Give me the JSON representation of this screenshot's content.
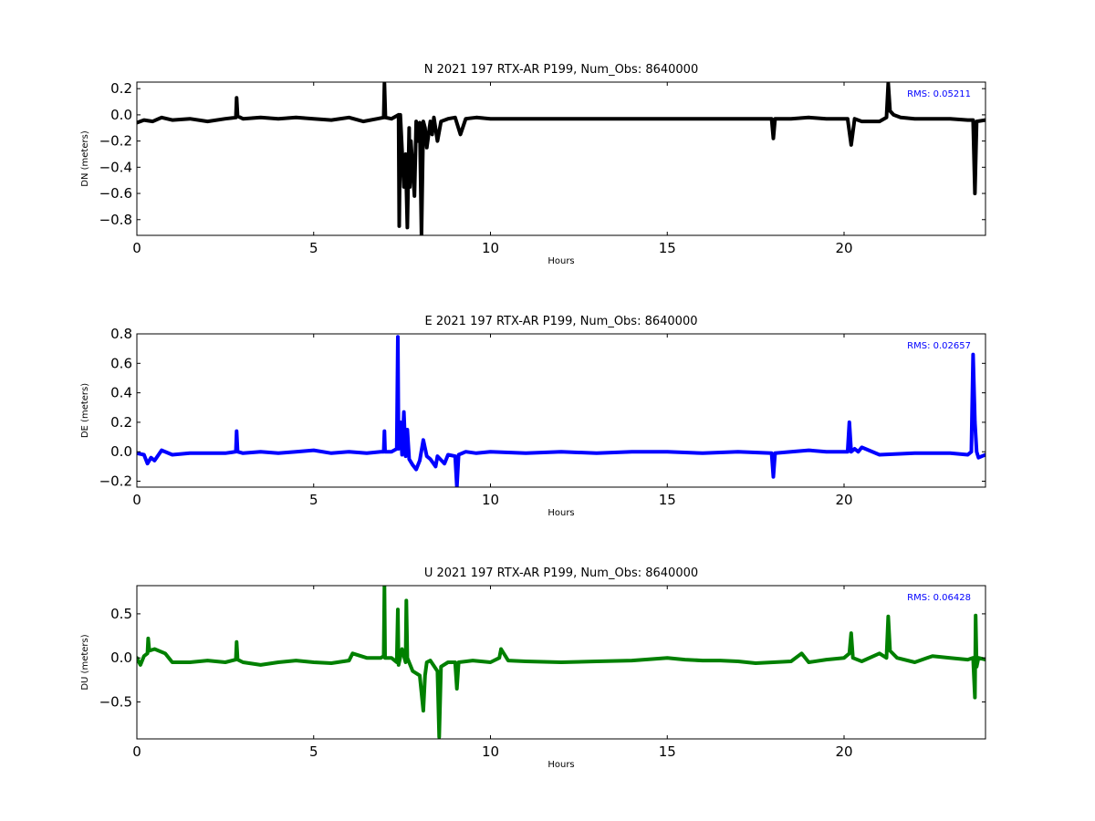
{
  "chart_data": [
    {
      "type": "line",
      "title": "N 2021 197 RTX-AR  P199, Num_Obs: 8640000",
      "xlabel": "Hours",
      "ylabel": "DN (meters)",
      "xlim": [
        0,
        24
      ],
      "ylim": [
        -0.92,
        0.25
      ],
      "xticks": [
        0,
        5,
        10,
        15,
        20
      ],
      "xtick_labels": [
        "0",
        "5",
        "10",
        "15",
        "20"
      ],
      "yticks": [
        0.2,
        0.0,
        -0.2,
        -0.4,
        -0.6,
        -0.8
      ],
      "ytick_labels": [
        "0.2",
        "0.0",
        "−0.2",
        "−0.4",
        "−0.6",
        "−0.8"
      ],
      "annotation": "RMS:  0.05211",
      "annotation_color": "#0000ff",
      "series": [
        {
          "color": "#000000",
          "x": [
            0,
            0.2,
            0.45,
            0.7,
            1.0,
            1.5,
            2.0,
            2.5,
            2.8,
            2.82,
            2.85,
            3.0,
            3.5,
            4.0,
            4.5,
            5.0,
            5.5,
            6.0,
            6.4,
            6.8,
            6.98,
            7.0,
            7.03,
            7.2,
            7.4,
            7.42,
            7.45,
            7.55,
            7.6,
            7.65,
            7.7,
            7.72,
            7.75,
            7.85,
            7.9,
            7.95,
            8.0,
            8.05,
            8.1,
            8.15,
            8.2,
            8.3,
            8.35,
            8.4,
            8.5,
            8.6,
            8.8,
            9.0,
            9.15,
            9.3,
            9.6,
            10.0,
            11.0,
            12.0,
            13.0,
            14.0,
            15.0,
            16.0,
            17.0,
            17.95,
            18.0,
            18.05,
            18.5,
            19.0,
            19.5,
            20.0,
            20.1,
            20.2,
            20.3,
            20.5,
            21.0,
            21.2,
            21.25,
            21.3,
            21.4,
            21.6,
            22.0,
            22.5,
            23.0,
            23.5,
            23.65,
            23.7,
            23.75,
            24.0
          ],
          "y": [
            -0.06,
            -0.04,
            -0.05,
            -0.02,
            -0.04,
            -0.03,
            -0.05,
            -0.03,
            -0.02,
            0.13,
            -0.01,
            -0.03,
            -0.02,
            -0.03,
            -0.02,
            -0.03,
            -0.04,
            -0.02,
            -0.05,
            -0.03,
            -0.02,
            0.24,
            -0.02,
            -0.03,
            0.0,
            -0.85,
            0.0,
            -0.55,
            -0.3,
            -0.86,
            -0.1,
            -0.55,
            -0.2,
            -0.62,
            -0.05,
            -0.2,
            -0.06,
            -0.92,
            -0.05,
            -0.1,
            -0.25,
            -0.05,
            -0.15,
            -0.02,
            -0.2,
            -0.05,
            -0.03,
            -0.02,
            -0.15,
            -0.03,
            -0.02,
            -0.03,
            -0.03,
            -0.03,
            -0.03,
            -0.03,
            -0.03,
            -0.03,
            -0.03,
            -0.03,
            -0.18,
            -0.03,
            -0.03,
            -0.02,
            -0.03,
            -0.03,
            -0.03,
            -0.23,
            -0.03,
            -0.05,
            -0.05,
            -0.02,
            0.24,
            0.03,
            0.0,
            -0.02,
            -0.03,
            -0.03,
            -0.03,
            -0.04,
            -0.04,
            -0.6,
            -0.05,
            -0.04
          ]
        }
      ]
    },
    {
      "type": "line",
      "title": "E 2021 197 RTX-AR  P199, Num_Obs: 8640000",
      "xlabel": "Hours",
      "ylabel": "DE (meters)",
      "xlim": [
        0,
        24
      ],
      "ylim": [
        -0.24,
        0.8
      ],
      "xticks": [
        0,
        5,
        10,
        15,
        20
      ],
      "xtick_labels": [
        "0",
        "5",
        "10",
        "15",
        "20"
      ],
      "yticks": [
        0.8,
        0.6,
        0.4,
        0.2,
        0.0,
        -0.2
      ],
      "ytick_labels": [
        "0.8",
        "0.6",
        "0.4",
        "0.2",
        "0.0",
        "−0.2"
      ],
      "annotation": "RMS:  0.02657",
      "annotation_color": "#0000ff",
      "series": [
        {
          "color": "#0000ff",
          "x": [
            0,
            0.2,
            0.3,
            0.4,
            0.5,
            0.7,
            1.0,
            1.5,
            2.0,
            2.5,
            2.8,
            2.82,
            2.85,
            3.0,
            3.5,
            4.0,
            4.5,
            5.0,
            5.5,
            6.0,
            6.5,
            6.9,
            6.98,
            7.0,
            7.02,
            7.2,
            7.35,
            7.38,
            7.4,
            7.45,
            7.5,
            7.55,
            7.6,
            7.65,
            7.7,
            7.8,
            7.9,
            8.0,
            8.1,
            8.2,
            8.3,
            8.45,
            8.5,
            8.7,
            8.8,
            9.0,
            9.05,
            9.1,
            9.3,
            9.6,
            10.0,
            11.0,
            12.0,
            13.0,
            14.0,
            15.0,
            16.0,
            17.0,
            17.95,
            18.0,
            18.05,
            18.5,
            19.0,
            19.5,
            20.0,
            20.1,
            20.15,
            20.2,
            20.3,
            20.4,
            20.5,
            21.0,
            22.0,
            23.0,
            23.5,
            23.6,
            23.65,
            23.7,
            23.75,
            23.8,
            24.0
          ],
          "y": [
            -0.01,
            -0.02,
            -0.08,
            -0.04,
            -0.06,
            0.01,
            -0.02,
            -0.01,
            -0.01,
            -0.01,
            0.0,
            0.14,
            0.0,
            -0.01,
            0.0,
            -0.01,
            0.0,
            0.01,
            -0.01,
            0.0,
            -0.01,
            0.0,
            0.0,
            0.14,
            0.0,
            0.0,
            0.02,
            0.78,
            0.02,
            0.2,
            -0.02,
            0.27,
            -0.03,
            0.15,
            -0.05,
            -0.09,
            -0.12,
            -0.06,
            0.08,
            -0.03,
            -0.05,
            -0.1,
            -0.03,
            -0.08,
            -0.02,
            -0.03,
            -0.24,
            -0.02,
            0.0,
            -0.01,
            0.0,
            -0.01,
            0.0,
            -0.01,
            0.0,
            0.0,
            -0.01,
            0.0,
            -0.01,
            -0.17,
            -0.01,
            0.0,
            0.01,
            0.0,
            0.0,
            0.0,
            0.2,
            0.0,
            0.02,
            0.0,
            0.03,
            -0.02,
            -0.01,
            -0.01,
            -0.02,
            0.0,
            0.66,
            0.2,
            0.0,
            -0.04,
            -0.02
          ]
        }
      ]
    },
    {
      "type": "line",
      "title": "U 2021 197 RTX-AR  P199, Num_Obs: 8640000",
      "xlabel": "Hours",
      "ylabel": "DU (meters)",
      "xlim": [
        0,
        24
      ],
      "ylim": [
        -0.92,
        0.82
      ],
      "xticks": [
        0,
        5,
        10,
        15,
        20
      ],
      "xtick_labels": [
        "0",
        "5",
        "10",
        "15",
        "20"
      ],
      "yticks": [
        0.5,
        0.0,
        -0.5
      ],
      "ytick_labels": [
        "0.5",
        "0.0",
        "−0.5"
      ],
      "annotation": "RMS:  0.06428",
      "annotation_color": "#0000ff",
      "series": [
        {
          "color": "#008000",
          "x": [
            0,
            0.1,
            0.2,
            0.3,
            0.32,
            0.35,
            0.5,
            0.8,
            1.0,
            1.5,
            2.0,
            2.5,
            2.8,
            2.82,
            2.85,
            3.0,
            3.5,
            4.0,
            4.5,
            5.0,
            5.5,
            6.0,
            6.1,
            6.5,
            6.9,
            6.98,
            7.0,
            7.02,
            7.2,
            7.35,
            7.38,
            7.4,
            7.5,
            7.6,
            7.62,
            7.65,
            7.8,
            8.0,
            8.1,
            8.15,
            8.2,
            8.3,
            8.5,
            8.55,
            8.6,
            8.8,
            9.0,
            9.05,
            9.1,
            9.5,
            10.0,
            10.25,
            10.3,
            10.5,
            11.0,
            12.0,
            13.0,
            14.0,
            15.0,
            15.5,
            16.0,
            16.5,
            17.0,
            17.5,
            18.0,
            18.5,
            18.8,
            19.0,
            19.5,
            20.0,
            20.15,
            20.2,
            20.25,
            20.5,
            21.0,
            21.2,
            21.25,
            21.3,
            21.5,
            22.0,
            22.5,
            23.0,
            23.5,
            23.65,
            23.7,
            23.72,
            23.75,
            23.8,
            24.0
          ],
          "y": [
            0.0,
            -0.08,
            0.02,
            0.05,
            0.22,
            0.08,
            0.1,
            0.05,
            -0.05,
            -0.05,
            -0.03,
            -0.05,
            -0.02,
            0.18,
            -0.02,
            -0.05,
            -0.08,
            -0.05,
            -0.03,
            -0.05,
            -0.06,
            -0.03,
            0.05,
            0.0,
            0.0,
            0.02,
            0.82,
            0.0,
            0.0,
            -0.05,
            0.55,
            -0.08,
            0.1,
            -0.05,
            0.65,
            0.0,
            -0.15,
            -0.2,
            -0.6,
            -0.2,
            -0.05,
            -0.03,
            -0.15,
            -0.9,
            -0.1,
            -0.05,
            -0.05,
            -0.35,
            -0.05,
            -0.03,
            -0.05,
            0.0,
            0.1,
            -0.03,
            -0.04,
            -0.05,
            -0.04,
            -0.03,
            0.0,
            -0.02,
            -0.03,
            -0.03,
            -0.04,
            -0.06,
            -0.05,
            -0.04,
            0.05,
            -0.05,
            -0.02,
            0.0,
            0.05,
            0.28,
            0.0,
            -0.04,
            0.05,
            0.0,
            0.47,
            0.08,
            0.0,
            -0.05,
            0.02,
            0.0,
            -0.02,
            0.0,
            -0.45,
            0.48,
            -0.1,
            0.0,
            -0.02
          ]
        }
      ]
    }
  ]
}
